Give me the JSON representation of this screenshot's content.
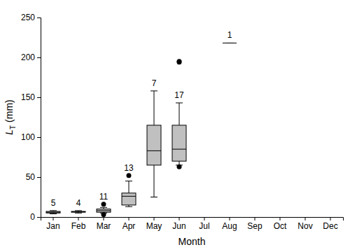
{
  "chart_data": {
    "type": "box",
    "x_label": "Month",
    "y_label": {
      "symbol": "L",
      "subscript": "T",
      "unit": " (mm)"
    },
    "categories": [
      "Jan",
      "Feb",
      "Mar",
      "Apr",
      "May",
      "Jun",
      "Jul",
      "Aug",
      "Sep",
      "Oct",
      "Nov",
      "Dec"
    ],
    "whisker_low": [
      4,
      5,
      5,
      13,
      25,
      65,
      null,
      218,
      null,
      null,
      null,
      null
    ],
    "q1": [
      5,
      6,
      6,
      15,
      65,
      70,
      null,
      218,
      null,
      null,
      null,
      null
    ],
    "median": [
      6,
      6.5,
      8,
      26,
      83,
      85,
      null,
      218,
      null,
      null,
      null,
      null
    ],
    "q3": [
      7,
      7,
      10,
      30,
      115,
      115,
      null,
      218,
      null,
      null,
      null,
      null
    ],
    "whisker_high": [
      8,
      8,
      12,
      45,
      158,
      143,
      null,
      218,
      null,
      null,
      null,
      null
    ],
    "outliers": [
      [],
      [],
      [
        16,
        3
      ],
      [
        52
      ],
      [],
      [
        195,
        194,
        63
      ],
      [],
      [],
      [],
      [],
      [],
      []
    ],
    "n": [
      5,
      4,
      11,
      13,
      7,
      17,
      null,
      1,
      null,
      null,
      null,
      null
    ],
    "color": "#c0c0c0",
    "ylim": [
      0,
      250
    ],
    "yticks": [
      0,
      50,
      100,
      150,
      200,
      250
    ],
    "grid": false
  }
}
